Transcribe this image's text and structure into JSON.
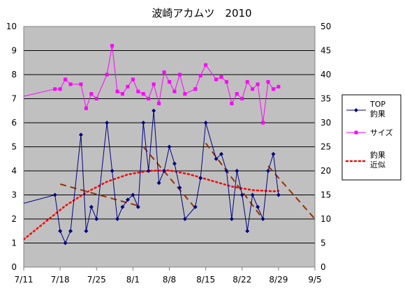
{
  "chart_data": {
    "type": "line",
    "title": "波崎アカムツ　2010",
    "x_ticks": [
      "7/11",
      "7/18",
      "7/25",
      "8/1",
      "8/8",
      "8/15",
      "8/22",
      "8/29",
      "9/5"
    ],
    "x_range": [
      "7/11",
      "9/5"
    ],
    "y_left": {
      "min": 0,
      "max": 10,
      "ticks": [
        0,
        1,
        2,
        3,
        4,
        5,
        6,
        7,
        8,
        9,
        10
      ]
    },
    "y_right": {
      "min": 0,
      "max": 50,
      "ticks": [
        0,
        5,
        10,
        15,
        20,
        25,
        30,
        35,
        40,
        45,
        50
      ]
    },
    "grid": true,
    "legend_position": "right",
    "colors": {
      "top": "#000080",
      "size": "#ff00ff",
      "approx": "#ff0000",
      "trend": "#993300",
      "plot_bg": "#c0c0c0",
      "grid": "#000000"
    },
    "series": [
      {
        "name": "TOP\n釣果",
        "axis": "left",
        "points": [
          [
            "7/11",
            2.65
          ],
          [
            "7/17",
            3
          ],
          [
            "7/18",
            1.5
          ],
          [
            "7/19",
            1
          ],
          [
            "7/20",
            1.5
          ],
          [
            "7/22",
            5.5
          ],
          [
            "7/23",
            1.5
          ],
          [
            "7/24",
            2.5
          ],
          [
            "7/25",
            2
          ],
          [
            "7/27",
            6
          ],
          [
            "7/28",
            4
          ],
          [
            "7/29",
            2
          ],
          [
            "7/30",
            2.5
          ],
          [
            "7/31",
            2.8
          ],
          [
            "8/1",
            3
          ],
          [
            "8/2",
            2.5
          ],
          [
            "8/3",
            6
          ],
          [
            "8/4",
            4
          ],
          [
            "8/5",
            6.5
          ],
          [
            "8/6",
            3.5
          ],
          [
            "8/7",
            4
          ],
          [
            "8/8",
            5
          ],
          [
            "8/9",
            4.3
          ],
          [
            "8/10",
            3.3
          ],
          [
            "8/11",
            2
          ],
          [
            "8/13",
            2.5
          ],
          [
            "8/14",
            3.7
          ],
          [
            "8/15",
            6
          ],
          [
            "8/17",
            4.5
          ],
          [
            "8/18",
            4.7
          ],
          [
            "8/19",
            4
          ],
          [
            "8/20",
            2
          ],
          [
            "8/21",
            4
          ],
          [
            "8/22",
            3
          ],
          [
            "8/23",
            1.5
          ],
          [
            "8/24",
            3
          ],
          [
            "8/25",
            2.5
          ],
          [
            "8/26",
            2
          ],
          [
            "8/27",
            4
          ],
          [
            "8/28",
            4.7
          ],
          [
            "8/29",
            3
          ]
        ]
      },
      {
        "name": "サイズ",
        "axis": "right",
        "points": [
          [
            "7/11",
            35.5
          ],
          [
            "7/17",
            37
          ],
          [
            "7/18",
            37
          ],
          [
            "7/19",
            39
          ],
          [
            "7/20",
            38
          ],
          [
            "7/22",
            38
          ],
          [
            "7/23",
            33
          ],
          [
            "7/24",
            36
          ],
          [
            "7/25",
            35
          ],
          [
            "7/27",
            40
          ],
          [
            "7/28",
            46
          ],
          [
            "7/29",
            36.5
          ],
          [
            "7/30",
            36
          ],
          [
            "7/31",
            37.5
          ],
          [
            "8/1",
            39
          ],
          [
            "8/2",
            36.5
          ],
          [
            "8/3",
            36
          ],
          [
            "8/4",
            35
          ],
          [
            "8/5",
            38
          ],
          [
            "8/6",
            34
          ],
          [
            "8/7",
            40.5
          ],
          [
            "8/8",
            38.5
          ],
          [
            "8/9",
            36.5
          ],
          [
            "8/10",
            40
          ],
          [
            "8/11",
            36
          ],
          [
            "8/13",
            37
          ],
          [
            "8/14",
            39.8
          ],
          [
            "8/15",
            42
          ],
          [
            "8/17",
            39
          ],
          [
            "8/18",
            39.5
          ],
          [
            "8/19",
            38.5
          ],
          [
            "8/20",
            34
          ],
          [
            "8/21",
            36
          ],
          [
            "8/22",
            35
          ],
          [
            "8/23",
            38.5
          ],
          [
            "8/24",
            37
          ],
          [
            "8/25",
            38
          ],
          [
            "8/26",
            30
          ],
          [
            "8/27",
            38.5
          ],
          [
            "8/28",
            37
          ],
          [
            "8/29",
            37.5
          ]
        ]
      },
      {
        "name": "釣果\n近似",
        "axis": "left",
        "points": [
          [
            "7/11",
            1.15
          ],
          [
            "7/15",
            1.85
          ],
          [
            "7/19",
            2.55
          ],
          [
            "7/23",
            3.1
          ],
          [
            "7/27",
            3.55
          ],
          [
            "7/31",
            3.85
          ],
          [
            "8/4",
            4.0
          ],
          [
            "8/8",
            4.02
          ],
          [
            "8/12",
            3.85
          ],
          [
            "8/16",
            3.6
          ],
          [
            "8/20",
            3.35
          ],
          [
            "8/24",
            3.2
          ],
          [
            "8/28",
            3.15
          ],
          [
            "8/29",
            3.17
          ]
        ]
      }
    ],
    "trend_segments": [
      [
        [
          "7/18",
          3.45
        ],
        [
          "8/2",
          2.55
        ]
      ],
      [
        [
          "8/3",
          5.0
        ],
        [
          "8/13",
          2.45
        ]
      ],
      [
        [
          "8/15",
          5.15
        ],
        [
          "8/26",
          2.0
        ]
      ],
      [
        [
          "8/27",
          4.2
        ],
        [
          "9/5",
          2.0
        ]
      ]
    ]
  }
}
